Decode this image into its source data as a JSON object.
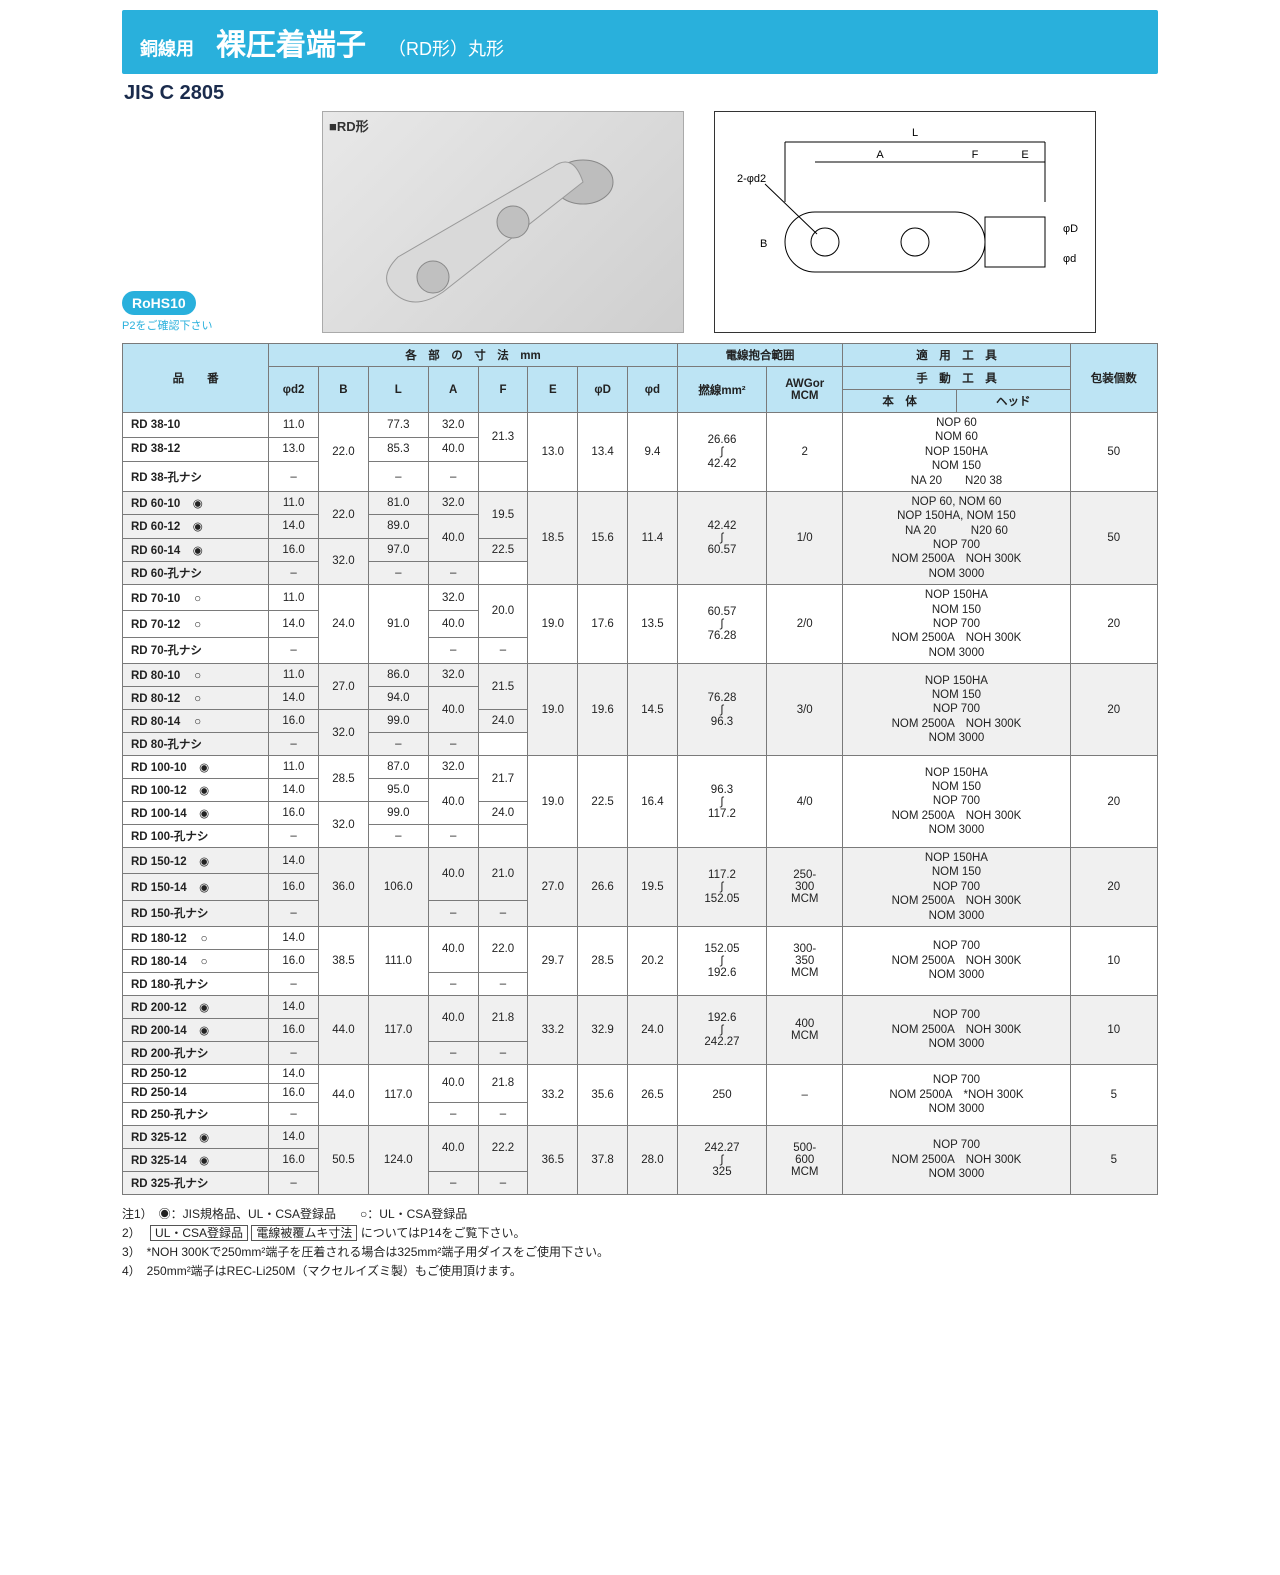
{
  "header": {
    "label1": "銅線用",
    "title": "裸圧着端子",
    "label2": "（RD形）丸形",
    "jis": "JIS C 2805",
    "photo_label": "■RD形",
    "rohs": "RoHS10",
    "rohs_note": "P2をご確認下さい"
  },
  "table": {
    "head": {
      "part": "品　　番",
      "dims": "各　部　の　寸　法　mm",
      "d2": "φd2",
      "B": "B",
      "L": "L",
      "A": "A",
      "F": "F",
      "E": "E",
      "D": "φD",
      "d": "φd",
      "wire": "電線抱合範囲",
      "mm2": "撚線mm²",
      "awg": "AWGor\nMCM",
      "tools": "適　用　工　具",
      "manual": "手　動　工　具",
      "body": "本　体",
      "headc": "ヘッド",
      "pack": "包装個数"
    },
    "groups": [
      {
        "alt": false,
        "rows": [
          {
            "pn": "RD 38-10",
            "mark": "",
            "d2": "11.0",
            "L": "77.3",
            "A": "32.0"
          },
          {
            "pn": "RD 38-12",
            "mark": "",
            "d2": "13.0",
            "L": "85.3",
            "A": "40.0"
          },
          {
            "pn": "RD 38-孔ナシ",
            "mark": "",
            "d2": "–",
            "L": "",
            "A": "–"
          }
        ],
        "B": "22.0",
        "F1": "21.3",
        "F2": "–",
        "E": "13.0",
        "D": "13.4",
        "d": "9.4",
        "mm2": "26.66\n∫\n42.42",
        "awg": "2",
        "toolbody": [
          "NOP 60",
          "NOM 60",
          "NOP 150HA",
          "NOM 150",
          "NA 20　　N20 38"
        ],
        "toolhead": "",
        "pack": "50"
      },
      {
        "alt": true,
        "rows": [
          {
            "pn": "RD 60-10",
            "mark": "◉",
            "d2": "11.0",
            "L": "81.0",
            "A": "32.0"
          },
          {
            "pn": "RD 60-12",
            "mark": "◉",
            "d2": "14.0",
            "L": "89.0",
            "A": "40.0"
          },
          {
            "pn": "RD 60-14",
            "mark": "◉",
            "d2": "16.0",
            "L": "97.0",
            "A": ""
          },
          {
            "pn": "RD 60-孔ナシ",
            "mark": "",
            "d2": "–",
            "L": "",
            "A": "–"
          }
        ],
        "B": [
          "22.0",
          "32.0"
        ],
        "F1": "19.5",
        "F2": "22.5",
        "F3": "–",
        "E": "18.5",
        "D": "15.6",
        "d": "11.4",
        "mm2": "42.42\n∫\n60.57",
        "awg": "1/0",
        "toolbody": [
          "NOP 60, NOM 60",
          "NOP 150HA, NOM 150",
          "NA 20　　　N20 60",
          "NOP 700",
          "NOM 2500A　NOH 300K",
          "NOM 3000"
        ],
        "toolhead": "",
        "pack": "50"
      },
      {
        "alt": false,
        "rows": [
          {
            "pn": "RD 70-10",
            "mark": "○",
            "d2": "11.0",
            "A": "32.0"
          },
          {
            "pn": "RD 70-12",
            "mark": "○",
            "d2": "14.0",
            "A": "40.0"
          },
          {
            "pn": "RD 70-孔ナシ",
            "mark": "",
            "d2": "–",
            "A": "–"
          }
        ],
        "B": "24.0",
        "L": "91.0",
        "F1": "20.0",
        "F2": "–",
        "E": "19.0",
        "D": "17.6",
        "d": "13.5",
        "mm2": "60.57\n∫\n76.28",
        "awg": "2/0",
        "toolbody": [
          "NOP 150HA",
          "NOM 150",
          "NOP 700",
          "NOM 2500A　NOH 300K",
          "NOM 3000"
        ],
        "toolhead": "",
        "pack": "20"
      },
      {
        "alt": true,
        "rows": [
          {
            "pn": "RD 80-10",
            "mark": "○",
            "d2": "11.0",
            "L": "86.0",
            "A": "32.0"
          },
          {
            "pn": "RD 80-12",
            "mark": "○",
            "d2": "14.0",
            "L": "94.0",
            "A": "40.0"
          },
          {
            "pn": "RD 80-14",
            "mark": "○",
            "d2": "16.0",
            "L": "99.0",
            "A": ""
          },
          {
            "pn": "RD 80-孔ナシ",
            "mark": "",
            "d2": "–",
            "L": "",
            "A": "–"
          }
        ],
        "B": [
          "27.0",
          "32.0"
        ],
        "F1": "21.5",
        "F2": "24.0",
        "F3": "–",
        "E": "19.0",
        "D": "19.6",
        "d": "14.5",
        "mm2": "76.28\n∫\n96.3",
        "awg": "3/0",
        "toolbody": [
          "NOP 150HA",
          "NOM 150",
          "NOP 700",
          "NOM 2500A　NOH 300K",
          "NOM 3000"
        ],
        "toolhead": "",
        "pack": "20"
      },
      {
        "alt": false,
        "rows": [
          {
            "pn": "RD 100-10",
            "mark": "◉",
            "d2": "11.0",
            "L": "87.0",
            "A": "32.0"
          },
          {
            "pn": "RD 100-12",
            "mark": "◉",
            "d2": "14.0",
            "L": "95.0",
            "A": "40.0"
          },
          {
            "pn": "RD 100-14",
            "mark": "◉",
            "d2": "16.0",
            "L": "99.0",
            "A": ""
          },
          {
            "pn": "RD 100-孔ナシ",
            "mark": "",
            "d2": "–",
            "L": "",
            "A": "–"
          }
        ],
        "B": [
          "28.5",
          "32.0"
        ],
        "F1": "21.7",
        "F2": "24.0",
        "F3": "–",
        "E": "19.0",
        "D": "22.5",
        "d": "16.4",
        "mm2": "96.3\n∫\n117.2",
        "awg": "4/0",
        "toolbody": [
          "NOP 150HA",
          "NOM 150",
          "NOP 700",
          "NOM 2500A　NOH 300K",
          "NOM 3000"
        ],
        "toolhead": "",
        "pack": "20"
      },
      {
        "alt": true,
        "rows": [
          {
            "pn": "RD 150-12",
            "mark": "◉",
            "d2": "14.0",
            "A": "40.0"
          },
          {
            "pn": "RD 150-14",
            "mark": "◉",
            "d2": "16.0",
            "A": ""
          },
          {
            "pn": "RD 150-孔ナシ",
            "mark": "",
            "d2": "–",
            "A": "–"
          }
        ],
        "B": "36.0",
        "L": "106.0",
        "F1": "21.0",
        "F2": "–",
        "E": "27.0",
        "D": "26.6",
        "d": "19.5",
        "mm2": "117.2\n∫\n152.05",
        "awg": "250-\n300\nMCM",
        "toolbody": [
          "NOP 150HA",
          "NOM 150",
          "NOP 700",
          "NOM 2500A　NOH 300K",
          "NOM 3000"
        ],
        "toolhead": "",
        "pack": "20"
      },
      {
        "alt": false,
        "rows": [
          {
            "pn": "RD 180-12",
            "mark": "○",
            "d2": "14.0",
            "A": "40.0"
          },
          {
            "pn": "RD 180-14",
            "mark": "○",
            "d2": "16.0",
            "A": ""
          },
          {
            "pn": "RD 180-孔ナシ",
            "mark": "",
            "d2": "–",
            "A": "–"
          }
        ],
        "B": "38.5",
        "L": "111.0",
        "F1": "22.0",
        "F2": "–",
        "E": "29.7",
        "D": "28.5",
        "d": "20.2",
        "mm2": "152.05\n∫\n192.6",
        "awg": "300-\n350\nMCM",
        "toolbody": [
          "NOP 700",
          "NOM 2500A　NOH 300K",
          "NOM 3000"
        ],
        "toolhead": "",
        "pack": "10"
      },
      {
        "alt": true,
        "rows": [
          {
            "pn": "RD 200-12",
            "mark": "◉",
            "d2": "14.0",
            "A": "40.0"
          },
          {
            "pn": "RD 200-14",
            "mark": "◉",
            "d2": "16.0",
            "A": ""
          },
          {
            "pn": "RD 200-孔ナシ",
            "mark": "",
            "d2": "–",
            "A": "–"
          }
        ],
        "B": "44.0",
        "L": "117.0",
        "F1": "21.8",
        "F2": "–",
        "E": "33.2",
        "D": "32.9",
        "d": "24.0",
        "mm2": "192.6\n∫\n242.27",
        "awg": "400\nMCM",
        "toolbody": [
          "NOP 700",
          "NOM 2500A　NOH 300K",
          "NOM 3000"
        ],
        "toolhead": "",
        "pack": "10"
      },
      {
        "alt": false,
        "rows": [
          {
            "pn": "RD 250-12",
            "mark": "",
            "d2": "14.0",
            "A": "40.0"
          },
          {
            "pn": "RD 250-14",
            "mark": "",
            "d2": "16.0",
            "A": ""
          },
          {
            "pn": "RD 250-孔ナシ",
            "mark": "",
            "d2": "–",
            "A": "–"
          }
        ],
        "B": "44.0",
        "L": "117.0",
        "F1": "21.8",
        "F2": "–",
        "E": "33.2",
        "D": "35.6",
        "d": "26.5",
        "mm2": "250",
        "awg": "–",
        "toolbody": [
          "NOP 700",
          "NOM 2500A　*NOH 300K",
          "NOM 3000"
        ],
        "toolhead": "",
        "pack": "5"
      },
      {
        "alt": true,
        "rows": [
          {
            "pn": "RD 325-12",
            "mark": "◉",
            "d2": "14.0",
            "A": "40.0"
          },
          {
            "pn": "RD 325-14",
            "mark": "◉",
            "d2": "16.0",
            "A": ""
          },
          {
            "pn": "RD 325-孔ナシ",
            "mark": "",
            "d2": "–",
            "A": "–"
          }
        ],
        "B": "50.5",
        "L": "124.0",
        "F1": "22.2",
        "F2": "–",
        "E": "36.5",
        "D": "37.8",
        "d": "28.0",
        "mm2": "242.27\n∫\n325",
        "awg": "500-\n600\nMCM",
        "toolbody": [
          "NOP 700",
          "NOM 2500A　NOH 300K",
          "NOM 3000"
        ],
        "toolhead": "",
        "pack": "5"
      }
    ]
  },
  "notes": {
    "n1": "注1）　◉：JIS規格品、UL・CSA登録品　　○：UL・CSA登録品",
    "n2a": "2）　",
    "n2b1": "UL・CSA登録品",
    "n2b2": "電線被覆ムキ寸法",
    "n2c": " についてはP14をご覧下さい。",
    "n3": "3）　*NOH 300Kで250mm²端子を圧着される場合は325mm²端子用ダイスをご使用下さい。",
    "n4": "4）　250mm²端子はREC-Li250M（マクセルイズミ製）もご使用頂けます。"
  }
}
